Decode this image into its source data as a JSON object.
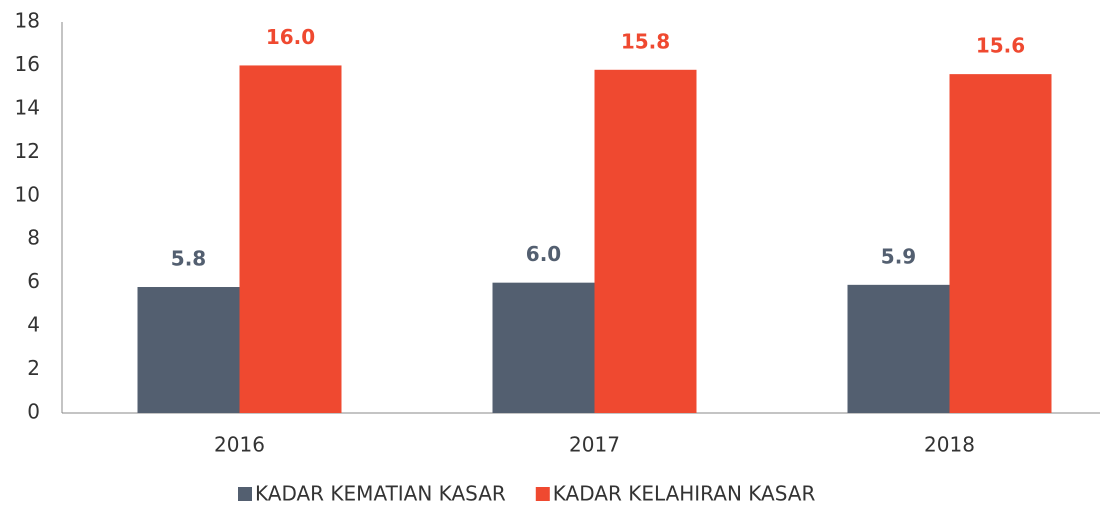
{
  "chart_data": {
    "type": "bar",
    "categories": [
      "2016",
      "2017",
      "2018"
    ],
    "series": [
      {
        "name": "KADAR KEMATIAN KASAR",
        "color": "#535f70",
        "values": [
          5.8,
          6.0,
          5.9
        ],
        "value_labels": [
          "5.8",
          "6.0",
          "5.9"
        ]
      },
      {
        "name": "KADAR KELAHIRAN KASAR",
        "color": "#ef4930",
        "values": [
          16.0,
          15.8,
          15.6
        ],
        "value_labels": [
          "16.0",
          "15.8",
          "15.6"
        ]
      }
    ],
    "ylim": [
      0,
      18
    ],
    "yticks": [
      0,
      2,
      4,
      6,
      8,
      10,
      12,
      14,
      16,
      18
    ],
    "grid": false,
    "legend": "bottom"
  }
}
